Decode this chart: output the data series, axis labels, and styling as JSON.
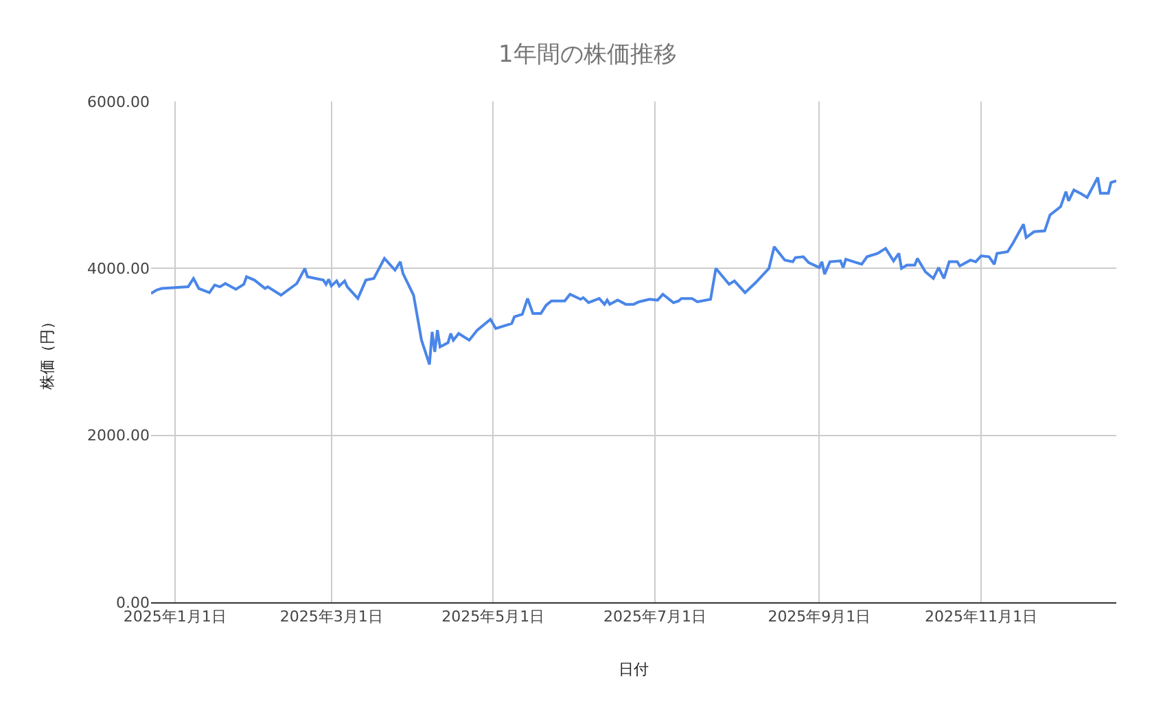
{
  "chart_data": {
    "type": "line",
    "title": "1年間の株価推移",
    "xlabel": "日付",
    "ylabel": "株価（円）",
    "x": [
      "2024-12-23",
      "2024-12-25",
      "2024-12-27",
      "2025-01-06",
      "2025-01-08",
      "2025-01-10",
      "2025-01-14",
      "2025-01-16",
      "2025-01-18",
      "2025-01-20",
      "2025-01-24",
      "2025-01-27",
      "2025-01-28",
      "2025-01-31",
      "2025-02-04",
      "2025-02-05",
      "2025-02-10",
      "2025-02-16",
      "2025-02-19",
      "2025-02-20",
      "2025-02-26",
      "2025-02-27",
      "2025-02-28",
      "2025-03-01",
      "2025-03-03",
      "2025-03-04",
      "2025-03-06",
      "2025-03-07",
      "2025-03-11",
      "2025-03-14",
      "2025-03-17",
      "2025-03-19",
      "2025-03-21",
      "2025-03-25",
      "2025-03-27",
      "2025-03-28",
      "2025-04-01",
      "2025-04-04",
      "2025-04-07",
      "2025-04-08",
      "2025-04-09",
      "2025-04-10",
      "2025-04-11",
      "2025-04-14",
      "2025-04-15",
      "2025-04-16",
      "2025-04-18",
      "2025-04-22",
      "2025-04-25",
      "2025-04-30",
      "2025-05-02",
      "2025-05-08",
      "2025-05-09",
      "2025-05-12",
      "2025-05-14",
      "2025-05-16",
      "2025-05-19",
      "2025-05-21",
      "2025-05-23",
      "2025-05-28",
      "2025-05-30",
      "2025-06-03",
      "2025-06-04",
      "2025-06-06",
      "2025-06-10",
      "2025-06-12",
      "2025-06-13",
      "2025-06-14",
      "2025-06-17",
      "2025-06-20",
      "2025-06-23",
      "2025-06-25",
      "2025-06-29",
      "2025-07-02",
      "2025-07-04",
      "2025-07-08",
      "2025-07-10",
      "2025-07-11",
      "2025-07-15",
      "2025-07-17",
      "2025-07-22",
      "2025-07-24",
      "2025-07-29",
      "2025-07-31",
      "2025-08-04",
      "2025-08-08",
      "2025-08-13",
      "2025-08-15",
      "2025-08-19",
      "2025-08-22",
      "2025-08-23",
      "2025-08-26",
      "2025-08-28",
      "2025-09-01",
      "2025-09-02",
      "2025-09-03",
      "2025-09-05",
      "2025-09-09",
      "2025-09-10",
      "2025-09-11",
      "2025-09-14",
      "2025-09-17",
      "2025-09-19",
      "2025-09-23",
      "2025-09-26",
      "2025-09-29",
      "2025-10-01",
      "2025-10-02",
      "2025-10-04",
      "2025-10-07",
      "2025-10-08",
      "2025-10-11",
      "2025-10-14",
      "2025-10-16",
      "2025-10-18",
      "2025-10-20",
      "2025-10-23",
      "2025-10-24",
      "2025-10-28",
      "2025-10-30",
      "2025-11-01",
      "2025-11-04",
      "2025-11-06",
      "2025-11-07",
      "2025-11-11",
      "2025-11-13",
      "2025-11-17",
      "2025-11-18",
      "2025-11-21",
      "2025-11-25",
      "2025-11-27",
      "2025-12-01",
      "2025-12-03",
      "2025-12-04",
      "2025-12-06",
      "2025-12-09",
      "2025-12-11",
      "2025-12-13",
      "2025-12-15",
      "2025-12-16",
      "2025-12-19",
      "2025-12-20",
      "2025-12-22"
    ],
    "series": [
      {
        "color": "#4a86e8",
        "values": [
          3700,
          3740,
          3760,
          3780,
          3880,
          3760,
          3710,
          3800,
          3780,
          3820,
          3750,
          3810,
          3900,
          3860,
          3760,
          3780,
          3680,
          3820,
          4000,
          3900,
          3860,
          3810,
          3870,
          3790,
          3850,
          3790,
          3850,
          3780,
          3640,
          3860,
          3880,
          4000,
          4120,
          3980,
          4080,
          3940,
          3680,
          3140,
          2850,
          3240,
          3000,
          3260,
          3060,
          3110,
          3220,
          3140,
          3220,
          3140,
          3260,
          3390,
          3280,
          3340,
          3420,
          3450,
          3640,
          3460,
          3460,
          3560,
          3610,
          3610,
          3690,
          3630,
          3650,
          3590,
          3640,
          3570,
          3620,
          3570,
          3620,
          3570,
          3570,
          3600,
          3630,
          3620,
          3690,
          3590,
          3610,
          3640,
          3640,
          3600,
          3630,
          4000,
          3810,
          3850,
          3710,
          3830,
          4000,
          4260,
          4100,
          4080,
          4130,
          4140,
          4070,
          4010,
          4080,
          3930,
          4080,
          4090,
          4010,
          4110,
          4080,
          4050,
          4140,
          4180,
          4240,
          4090,
          4180,
          4000,
          4040,
          4040,
          4120,
          3960,
          3880,
          4010,
          3880,
          4080,
          4080,
          4030,
          4100,
          4080,
          4150,
          4140,
          4050,
          4180,
          4200,
          4300,
          4530,
          4370,
          4440,
          4450,
          4640,
          4740,
          4920,
          4810,
          4940,
          4890,
          4850,
          4970,
          5090,
          4900,
          4900,
          5030,
          5050
        ]
      }
    ],
    "xlim": [
      "2024-12-23",
      "2025-12-22"
    ],
    "xticks": [
      {
        "value": "2025-01-01",
        "label": "2025年1月1日"
      },
      {
        "value": "2025-03-01",
        "label": "2025年3月1日"
      },
      {
        "value": "2025-05-01",
        "label": "2025年5月1日"
      },
      {
        "value": "2025-07-01",
        "label": "2025年7月1日"
      },
      {
        "value": "2025-09-01",
        "label": "2025年9月1日"
      },
      {
        "value": "2025-11-01",
        "label": "2025年11月1日"
      }
    ],
    "ylim": [
      0,
      6000
    ],
    "yticks": [
      {
        "value": 0,
        "label": "0.00"
      },
      {
        "value": 2000,
        "label": "2000.00"
      },
      {
        "value": 4000,
        "label": "4000.00"
      },
      {
        "value": 6000,
        "label": "6000.00"
      }
    ],
    "grid": true,
    "marker": "none",
    "line_style": "solid"
  }
}
